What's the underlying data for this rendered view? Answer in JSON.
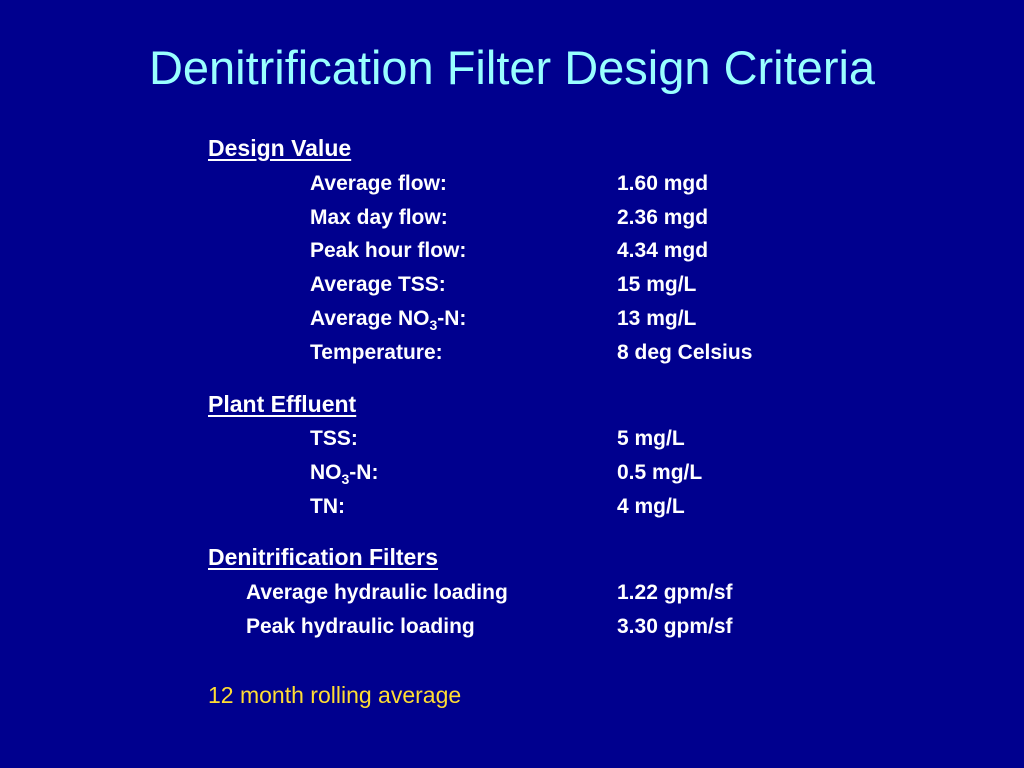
{
  "title": "Denitrification Filter Design Criteria",
  "design_value": {
    "heading": "Design Value",
    "rows": [
      {
        "label": "Average flow:",
        "value": "1.60 mgd"
      },
      {
        "label": "Max day flow:",
        "value": "2.36 mgd"
      },
      {
        "label": "Peak hour flow:",
        "value": "4.34 mgd"
      },
      {
        "label": "Average TSS:",
        "value": "15 mg/L"
      },
      {
        "label_pre": "Average NO",
        "label_sub": "3",
        "label_post": "-N:",
        "value": "13 mg/L"
      },
      {
        "label": "Temperature:",
        "value": "8 deg Celsius"
      }
    ]
  },
  "plant_effluent": {
    "heading": "Plant Effluent",
    "rows": [
      {
        "label": "TSS:",
        "value": "5 mg/L"
      },
      {
        "label_pre": "NO",
        "label_sub": "3",
        "label_post": "-N:",
        "value": "0.5 mg/L"
      },
      {
        "label": "TN:",
        "value": "4 mg/L"
      }
    ]
  },
  "denitrification_filters": {
    "heading": "Denitrification Filters",
    "rows": [
      {
        "label": "Average hydraulic loading",
        "value": "1.22 gpm/sf"
      },
      {
        "label": "Peak hydraulic loading",
        "value": "3.30 gpm/sf"
      }
    ]
  },
  "footnote": "12 month rolling average",
  "colors": {
    "background": "#00008e",
    "title": "#99ffff",
    "body_text": "#ffffff",
    "footnote": "#ffdd33"
  }
}
